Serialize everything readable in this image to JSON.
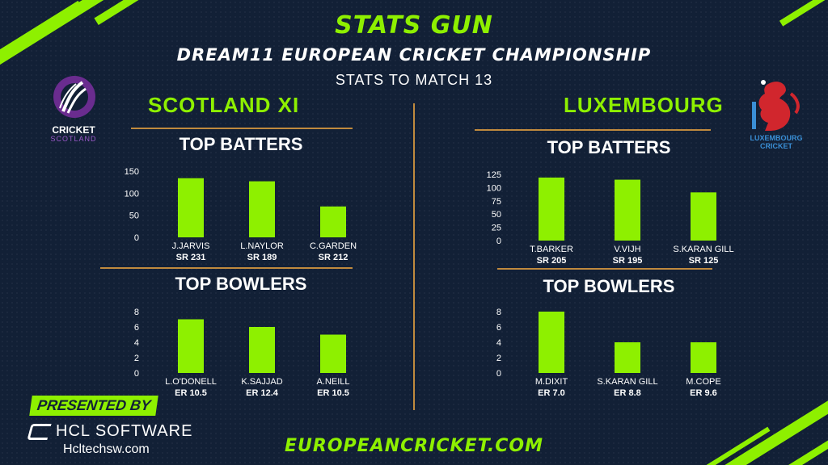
{
  "header": {
    "brand": "STATS GUN",
    "championship": "DREAM11 EUROPEAN CRICKET CHAMPIONSHIP",
    "subtitle": "STATS TO MATCH 13"
  },
  "teams": {
    "left": {
      "name": "SCOTLAND XI",
      "logo_line1": "CRICKET",
      "logo_line2": "SCOTLAND"
    },
    "right": {
      "name": "LUXEMBOURG",
      "logo_line1": "LUXEMBOURG",
      "logo_line2": "CRICKET"
    }
  },
  "section_titles": {
    "batters": "TOP BATTERS",
    "bowlers": "TOP BOWLERS"
  },
  "footer": {
    "presented_by": "PRESENTED BY",
    "sponsor": "HCL SOFTWARE",
    "sponsor_url": "Hcltechsw.com",
    "website": "EUROPEANCRICKET.COM"
  },
  "colors": {
    "accent": "#8ef000",
    "background": "#122036",
    "rule": "#c08a3e"
  },
  "chart_data": [
    {
      "type": "bar",
      "title": "TOP BATTERS",
      "team": "SCOTLAND XI",
      "categories": [
        "J.JARVIS",
        "L.NAYLOR",
        "C.GARDEN"
      ],
      "values": [
        134,
        127,
        70
      ],
      "sublabels": [
        "SR 231",
        "SR 189",
        "SR 212"
      ],
      "yticks": [
        0,
        50,
        100,
        150
      ],
      "ylim": [
        0,
        150
      ]
    },
    {
      "type": "bar",
      "title": "TOP BOWLERS",
      "team": "SCOTLAND XI",
      "categories": [
        "L.O'DONELL",
        "K.SAJJAD",
        "A.NEILL"
      ],
      "values": [
        7,
        6,
        5
      ],
      "sublabels": [
        "ER 10.5",
        "ER 12.4",
        "ER 10.5"
      ],
      "yticks": [
        0,
        2,
        4,
        6,
        8
      ],
      "ylim": [
        0,
        8
      ]
    },
    {
      "type": "bar",
      "title": "TOP BATTERS",
      "team": "LUXEMBOURG",
      "categories": [
        "T.BARKER",
        "V.VIJH",
        "S.KARAN GILL"
      ],
      "values": [
        119,
        115,
        91
      ],
      "sublabels": [
        "SR 205",
        "SR 195",
        "SR 125"
      ],
      "yticks": [
        0,
        25,
        50,
        75,
        100,
        125
      ],
      "ylim": [
        0,
        125
      ]
    },
    {
      "type": "bar",
      "title": "TOP BOWLERS",
      "team": "LUXEMBOURG",
      "categories": [
        "M.DIXIT",
        "S.KARAN GILL",
        "M.COPE"
      ],
      "values": [
        8,
        4,
        4
      ],
      "sublabels": [
        "ER 7.0",
        "ER 8.8",
        "ER 9.6"
      ],
      "yticks": [
        0,
        2,
        4,
        6,
        8
      ],
      "ylim": [
        0,
        8
      ]
    }
  ]
}
